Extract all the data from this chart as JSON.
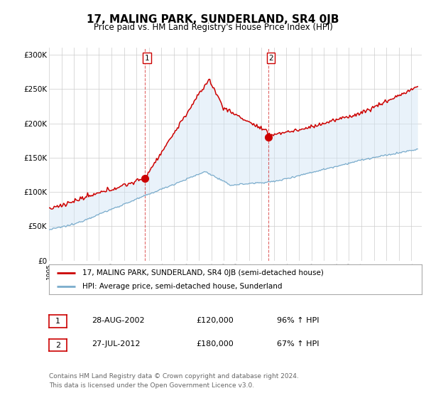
{
  "title": "17, MALING PARK, SUNDERLAND, SR4 0JB",
  "subtitle": "Price paid vs. HM Land Registry's House Price Index (HPI)",
  "ylim": [
    0,
    310000
  ],
  "yticks": [
    0,
    50000,
    100000,
    150000,
    200000,
    250000,
    300000
  ],
  "ytick_labels": [
    "£0",
    "£50K",
    "£100K",
    "£150K",
    "£200K",
    "£250K",
    "£300K"
  ],
  "red_line_color": "#cc0000",
  "blue_line_color": "#7aaccc",
  "fill_color": "#d0e4f5",
  "marker1_year": 2002.65,
  "marker1_value": 120000,
  "marker2_year": 2012.57,
  "marker2_value": 180000,
  "vline1_year": 2002.65,
  "vline2_year": 2012.57,
  "legend_red_label": "17, MALING PARK, SUNDERLAND, SR4 0JB (semi-detached house)",
  "legend_blue_label": "HPI: Average price, semi-detached house, Sunderland",
  "table_row1": [
    "1",
    "28-AUG-2002",
    "£120,000",
    "96% ↑ HPI"
  ],
  "table_row2": [
    "2",
    "27-JUL-2012",
    "£180,000",
    "67% ↑ HPI"
  ],
  "footnote": "Contains HM Land Registry data © Crown copyright and database right 2024.\nThis data is licensed under the Open Government Licence v3.0.",
  "bg_color": "#ffffff",
  "grid_color": "#cccccc"
}
